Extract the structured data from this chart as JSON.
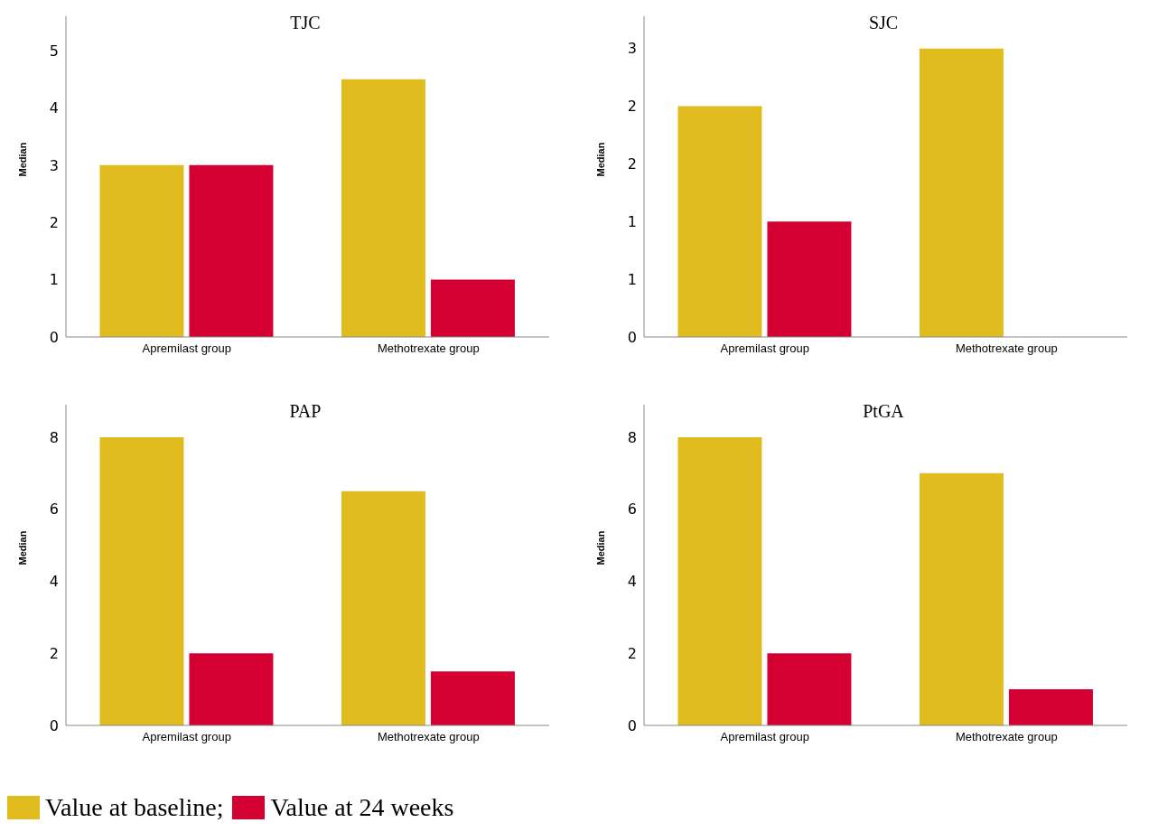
{
  "chart_data": [
    {
      "type": "bar",
      "title": "TJC",
      "ylabel": "Median",
      "categories": [
        "Apremilast group",
        "Methotrexate group"
      ],
      "ylim": [
        0,
        5.6
      ],
      "yticks": [
        0,
        1,
        2,
        3,
        4,
        5
      ],
      "legend": "bottom",
      "grid": false,
      "series": [
        {
          "name": "Value at baseline;",
          "color": "#e0bc1e",
          "values": [
            3,
            4.5
          ]
        },
        {
          "name": "Value at 24 weeks",
          "color": "#d50032",
          "values": [
            3,
            1
          ]
        }
      ]
    },
    {
      "type": "bar",
      "title": "SJC",
      "ylabel": "Median",
      "categories": [
        "Apremilast group",
        "Methotrexate group"
      ],
      "ylim": [
        0,
        2.78
      ],
      "yticks": [
        0,
        {
          "value": 0.5,
          "label": "1"
        },
        1,
        {
          "value": 1.5,
          "label": "2"
        },
        2,
        {
          "value": 2.5,
          "label": "3"
        }
      ],
      "grid": false,
      "series": [
        {
          "color": "#e0bc1e",
          "values": [
            2,
            2.5
          ]
        },
        {
          "color": "#d50032",
          "values": [
            1,
            0
          ]
        }
      ]
    },
    {
      "type": "bar",
      "title": "PAP",
      "ylabel": "Median",
      "categories": [
        "Apremilast group",
        "Methotrexate group"
      ],
      "ylim": [
        0,
        8.9
      ],
      "yticks": [
        0,
        2,
        4,
        6,
        8
      ],
      "grid": false,
      "series": [
        {
          "color": "#e0bc1e",
          "values": [
            8,
            6.5
          ]
        },
        {
          "color": "#d50032",
          "values": [
            2,
            1.5
          ]
        }
      ]
    },
    {
      "type": "bar",
      "title": "PtGA",
      "ylabel": "Median",
      "categories": [
        "Apremilast group",
        "Methotrexate group"
      ],
      "ylim": [
        0,
        8.9
      ],
      "yticks": [
        0,
        2,
        4,
        6,
        8
      ],
      "grid": false,
      "series": [
        {
          "color": "#e0bc1e",
          "values": [
            8,
            7
          ]
        },
        {
          "color": "#d50032",
          "values": [
            2,
            1
          ]
        }
      ]
    }
  ]
}
